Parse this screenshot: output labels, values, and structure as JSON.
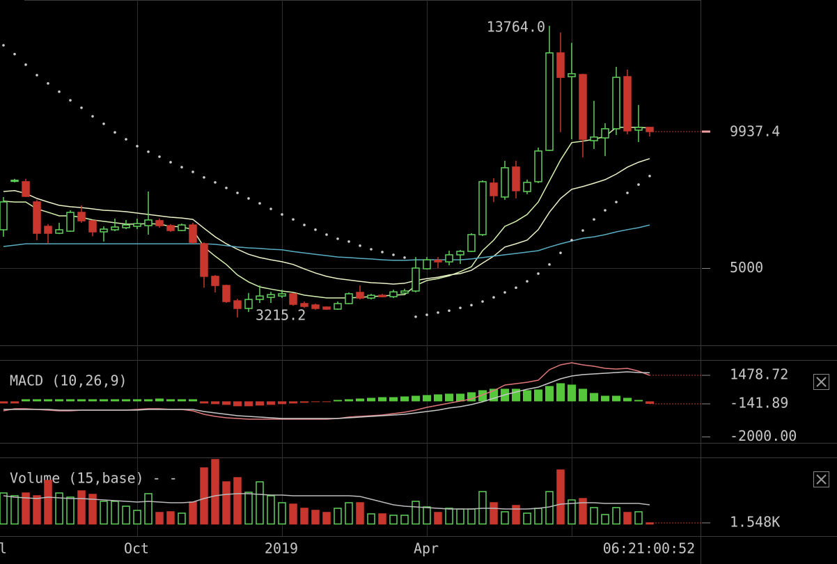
{
  "chart_data": [
    {
      "type": "candlestick",
      "open": [
        6386,
        8150,
        8125,
        7394,
        6510,
        6260,
        6335,
        7015,
        6710,
        6310,
        6385,
        6460,
        6510,
        6535,
        6715,
        6535,
        6360,
        6560,
        5880,
        4700,
        4370,
        3815,
        3540,
        3865,
        3940,
        3990,
        4070,
        3715,
        3665,
        3590,
        3515,
        3715,
        4120,
        3915,
        4015,
        3965,
        4095,
        4170,
        4975,
        5280,
        5225,
        5480,
        5605,
        6210,
        8075,
        7570,
        8655,
        7770,
        8125,
        9260,
        12785,
        11925,
        12000,
        9610,
        9710,
        10040,
        11925,
        9990,
        10090
      ],
      "high": [
        7570,
        8230,
        8230,
        7470,
        6590,
        6640,
        7090,
        7270,
        6740,
        6510,
        6790,
        6740,
        6790,
        7770,
        6790,
        6590,
        6610,
        6640,
        5930,
        4750,
        4400,
        3890,
        4100,
        4370,
        4140,
        4220,
        4100,
        3790,
        3715,
        3615,
        3790,
        4120,
        4370,
        4070,
        4070,
        4220,
        4250,
        5400,
        5400,
        5400,
        5630,
        5655,
        6260,
        8175,
        8250,
        8880,
        8880,
        8200,
        9360,
        13764,
        13525,
        13150,
        12030,
        11050,
        10240,
        12280,
        12180,
        10900,
        10090
      ],
      "low": [
        6134,
        8100,
        7570,
        6010,
        5880,
        6230,
        6310,
        6640,
        6150,
        5960,
        6335,
        6410,
        6410,
        6210,
        6460,
        6310,
        6335,
        5880,
        4290,
        4120,
        3740,
        3215.2,
        3410,
        3740,
        3740,
        3920,
        3640,
        3560,
        3490,
        3490,
        3490,
        3690,
        3865,
        3865,
        3940,
        3915,
        4070,
        4120,
        4950,
        5000,
        5100,
        5150,
        5580,
        6160,
        7390,
        7470,
        7520,
        7670,
        8075,
        9235,
        9915,
        9660,
        9005,
        9310,
        9050,
        9815,
        9840,
        9560,
        9760
      ],
      "close": [
        7394,
        8175,
        7595,
        6260,
        6260,
        6386,
        7015,
        6710,
        6310,
        6410,
        6485,
        6560,
        6610,
        6740,
        6535,
        6360,
        6560,
        5930,
        4700,
        4370,
        3790,
        3540,
        3865,
        3990,
        4040,
        4070,
        3690,
        3615,
        3540,
        3515,
        3715,
        4070,
        3915,
        4015,
        3965,
        4140,
        4170,
        5000,
        5300,
        5225,
        5480,
        5605,
        6210,
        8125,
        7620,
        8630,
        7800,
        8100,
        9235,
        12785,
        11900,
        12030,
        9660,
        9740,
        10040,
        11900,
        9965,
        10090,
        9937.4
      ],
      "up_color": "#5fd35a",
      "down_color": "#c8372d",
      "ylim": [
        2204,
        14698
      ],
      "yticks": [
        5000
      ],
      "last_price": 9937.4,
      "high_label": {
        "value": 13764,
        "label": "13764.0"
      },
      "low_label": 3215.2,
      "lines": [
        {
          "color": "#d6f2b0",
          "values": [
            7420,
            7390,
            7390,
            7140,
            7020,
            6890,
            6890,
            6840,
            6740,
            6690,
            6640,
            6590,
            6590,
            6610,
            6590,
            6510,
            6490,
            6390,
            5760,
            5430,
            5130,
            4750,
            4500,
            4320,
            4240,
            4170,
            4120,
            4020,
            3970,
            3920,
            3920,
            3920,
            3940,
            3970,
            3990,
            4020,
            4040,
            4370,
            4550,
            4620,
            4720,
            4870,
            5050,
            5630,
            6010,
            6510,
            6690,
            6940,
            7390,
            8150,
            8910,
            9540,
            9590,
            9660,
            9760,
            10090,
            10090,
            10090,
            10070
          ]
        },
        {
          "color": "#eef2c8",
          "values": [
            7770,
            7800,
            7700,
            7520,
            7390,
            7270,
            7220,
            7190,
            7140,
            7090,
            7070,
            7040,
            6990,
            6940,
            6890,
            6840,
            6810,
            6760,
            6440,
            6130,
            5880,
            5680,
            5500,
            5380,
            5300,
            5230,
            5130,
            4970,
            4820,
            4700,
            4620,
            4570,
            4520,
            4470,
            4450,
            4420,
            4450,
            4550,
            4620,
            4670,
            4750,
            4800,
            4920,
            5180,
            5430,
            5760,
            5880,
            6010,
            6390,
            7020,
            7520,
            7850,
            7950,
            8070,
            8200,
            8400,
            8650,
            8830,
            8960
          ]
        },
        {
          "color": "#5aaec4",
          "values": [
            5780,
            5830,
            5880,
            5880,
            5880,
            5880,
            5880,
            5880,
            5880,
            5880,
            5880,
            5880,
            5880,
            5880,
            5880,
            5880,
            5880,
            5880,
            5880,
            5860,
            5810,
            5760,
            5730,
            5710,
            5680,
            5660,
            5600,
            5550,
            5500,
            5450,
            5400,
            5380,
            5350,
            5330,
            5300,
            5280,
            5280,
            5300,
            5300,
            5300,
            5300,
            5300,
            5330,
            5380,
            5430,
            5480,
            5530,
            5580,
            5630,
            5760,
            5880,
            5980,
            6080,
            6130,
            6210,
            6310,
            6390,
            6460,
            6560
          ]
        }
      ],
      "dots": {
        "color": "#cccccc",
        "values": [
          13060,
          12740,
          12360,
          11980,
          11680,
          11380,
          11070,
          10800,
          10490,
          10220,
          9910,
          9660,
          9410,
          9210,
          9030,
          8830,
          8650,
          8480,
          8280,
          8100,
          7900,
          7720,
          7520,
          7340,
          7140,
          6940,
          6760,
          6560,
          6390,
          6210,
          6060,
          5960,
          5810,
          5680,
          5580,
          5480,
          5380,
          3240,
          3310,
          3390,
          3460,
          3560,
          3660,
          3790,
          3940,
          4120,
          4290,
          4520,
          4800,
          5130,
          5550,
          6010,
          6360,
          6760,
          7090,
          7390,
          7720,
          8020,
          8330
        ]
      }
    },
    {
      "type": "macd",
      "title": "MACD (10,26,9)",
      "ylim": [
        -2356,
        2348
      ],
      "yticks": [
        {
          "value": -2000,
          "label": "-2000.00"
        }
      ],
      "histogram": [
        -119,
        -119,
        119,
        119,
        119,
        119,
        119,
        119,
        119,
        119,
        119,
        119,
        119,
        119,
        158,
        119,
        119,
        119,
        -119,
        -158,
        -198,
        -277,
        -277,
        -237,
        -198,
        -158,
        -119,
        -79,
        -40,
        -40,
        79,
        119,
        158,
        198,
        237,
        237,
        277,
        316,
        356,
        395,
        435,
        435,
        514,
        632,
        712,
        712,
        712,
        632,
        672,
        870,
        1028,
        949,
        712,
        474,
        316,
        316,
        198,
        79,
        -141.89
      ],
      "up_color": "#54c83a",
      "down_color": "#c8372d",
      "lines": [
        {
          "color": "#e0787a",
          "values": [
            -538,
            -419,
            -419,
            -459,
            -498,
            -538,
            -538,
            -498,
            -498,
            -498,
            -498,
            -498,
            -459,
            -419,
            -419,
            -459,
            -459,
            -538,
            -735,
            -854,
            -933,
            -972,
            -1012,
            -1012,
            -1012,
            -1012,
            -1012,
            -1012,
            -1012,
            -1012,
            -972,
            -893,
            -854,
            -814,
            -775,
            -696,
            -617,
            -498,
            -340,
            -221,
            -103,
            16,
            134,
            372,
            609,
            925,
            1004,
            1083,
            1202,
            1795,
            2071,
            2190,
            2071,
            1992,
            1874,
            1834,
            1874,
            1716,
            1478.72
          ]
        },
        {
          "color": "#c8c8c8",
          "values": [
            -459,
            -459,
            -459,
            -459,
            -459,
            -498,
            -498,
            -498,
            -498,
            -498,
            -498,
            -498,
            -498,
            -459,
            -459,
            -459,
            -459,
            -459,
            -577,
            -656,
            -735,
            -814,
            -854,
            -893,
            -933,
            -972,
            -972,
            -972,
            -972,
            -972,
            -972,
            -933,
            -893,
            -854,
            -814,
            -775,
            -735,
            -656,
            -577,
            -498,
            -379,
            -300,
            -182,
            -24,
            174,
            372,
            530,
            688,
            806,
            1043,
            1281,
            1439,
            1518,
            1558,
            1597,
            1637,
            1676,
            1637,
            1620.61
          ]
        }
      ],
      "last_values": [
        1478.72,
        -141.89
      ]
    },
    {
      "type": "volume",
      "title": "Volume (15,base) - -",
      "categories": [
        "l",
        null,
        null,
        null,
        null,
        null,
        null,
        null,
        null,
        null,
        null,
        null,
        "Oct",
        null,
        null,
        null,
        null,
        null,
        null,
        null,
        null,
        null,
        null,
        null,
        null,
        "2019",
        null,
        null,
        null,
        null,
        null,
        null,
        null,
        null,
        null,
        null,
        null,
        null,
        "Apr",
        null,
        null,
        null,
        null,
        null,
        null,
        null,
        null,
        null,
        null,
        null,
        null,
        null,
        null,
        null,
        null,
        null,
        null,
        null,
        "06:21:00:52"
      ],
      "values": [
        44500,
        40500,
        44500,
        40500,
        62500,
        44500,
        38500,
        47500,
        42500,
        32500,
        32500,
        25500,
        19500,
        43500,
        16500,
        17500,
        15500,
        31500,
        80500,
        92500,
        60500,
        66500,
        45500,
        60500,
        40500,
        30500,
        28500,
        22500,
        19500,
        16500,
        22500,
        30500,
        30500,
        14500,
        14500,
        12500,
        12500,
        32500,
        24500,
        16500,
        22500,
        21500,
        21500,
        46500,
        30500,
        17500,
        26500,
        15500,
        22500,
        46500,
        77500,
        34500,
        36500,
        23500,
        13500,
        23500,
        16500,
        17500,
        1548
      ],
      "ma": {
        "color": "#bbbbbb",
        "values": [
          40500,
          38500,
          37500,
          36500,
          38500,
          37500,
          36500,
          36500,
          35500,
          34500,
          33500,
          32500,
          31500,
          32500,
          31500,
          30500,
          30500,
          31500,
          36500,
          40500,
          42500,
          43500,
          43500,
          42500,
          41500,
          41500,
          40500,
          40500,
          40500,
          40500,
          40500,
          40500,
          39500,
          35500,
          31500,
          27500,
          25500,
          24500,
          23500,
          22500,
          21500,
          21500,
          21500,
          22500,
          22500,
          21500,
          21500,
          21500,
          22500,
          24500,
          28500,
          29500,
          30500,
          30500,
          29500,
          29500,
          29500,
          29500,
          27500
        ]
      },
      "ylim": [
        -17500,
        95500
      ],
      "last_label": {
        "value": 1548,
        "label": "1.548K"
      }
    }
  ]
}
